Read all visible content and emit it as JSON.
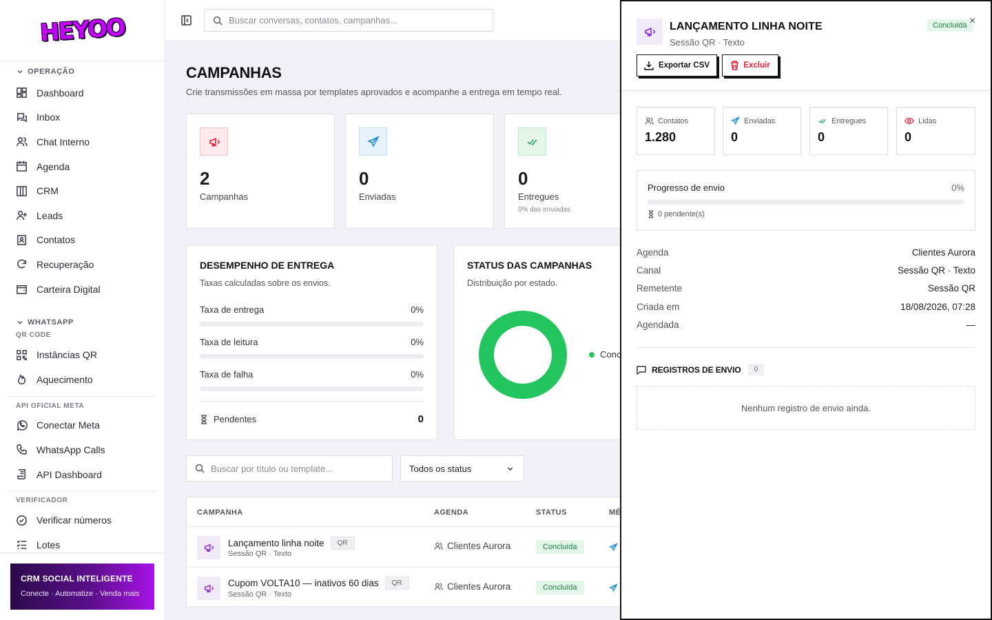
{
  "brand": {
    "logo_text": "HEYOO"
  },
  "topbar": {
    "search_placeholder": "Buscar conversas, contatos, campanhas..."
  },
  "sidebar": {
    "sections": [
      {
        "title": "OPERAÇÃO",
        "items": [
          "Dashboard",
          "Inbox",
          "Chat Interno",
          "Agenda",
          "CRM",
          "Leads",
          "Contatos",
          "Recuperação",
          "Carteira Digital"
        ]
      },
      {
        "title": "WHATSAPP",
        "subtitle": "QR CODE",
        "items": [
          "Instâncias QR",
          "Aquecimento"
        ]
      },
      {
        "title": "API OFICIAL META",
        "items": [
          "Conectar Meta",
          "WhatsApp Calls",
          "API Dashboard"
        ]
      },
      {
        "title": "VERIFICADOR",
        "items": [
          "Verificar números",
          "Lotes"
        ]
      }
    ],
    "promo": {
      "title": "CRM SOCIAL INTELIGENTE",
      "subtitle": "Conecte · Automatize · Venda mais"
    }
  },
  "page": {
    "title": "CAMPANHAS",
    "subtitle": "Crie transmissões em massa por templates aprovados e acompanhe a entrega em tempo real."
  },
  "stats": [
    {
      "value": "2",
      "label": "Campanhas",
      "icon": "megaphone-icon"
    },
    {
      "value": "0",
      "label": "Enviadas",
      "icon": "send-icon"
    },
    {
      "value": "0",
      "label": "Entregues",
      "note": "0% das enviadas",
      "icon": "double-check-icon"
    }
  ],
  "performance": {
    "title": "DESEMPENHO DE ENTREGA",
    "desc": "Taxas calculadas sobre os envios.",
    "rates": [
      {
        "label": "Taxa de entrega",
        "value": "0%"
      },
      {
        "label": "Taxa de leitura",
        "value": "0%"
      },
      {
        "label": "Taxa de falha",
        "value": "0%"
      }
    ],
    "pending_label": "Pendentes",
    "pending_value": "0"
  },
  "status_panel": {
    "title": "STATUS DAS CAMPANHAS",
    "desc": "Distribuição por estado.",
    "legend_label": "Conc"
  },
  "filters": {
    "search_placeholder": "Buscar por título ou template...",
    "status_value": "Todos os status"
  },
  "table": {
    "headers": [
      "CAMPANHA",
      "AGENDA",
      "STATUS",
      "MÉ"
    ],
    "rows": [
      {
        "name": "Lançamento linha noite",
        "tag": "QR",
        "meta": "Sessão QR · Texto",
        "agenda": "Clientes Aurora",
        "status": "Concluída"
      },
      {
        "name": "Cupom VOLTA10 — inativos 60 dias",
        "tag": "QR",
        "meta": "Sessão QR · Texto",
        "agenda": "Clientes Aurora",
        "status": "Concluída"
      }
    ]
  },
  "drawer": {
    "title": "LANÇAMENTO LINHA NOITE",
    "subtitle": "Sessão QR · Texto",
    "status": "Concluída",
    "close": "×",
    "export_label": "Exportar CSV",
    "delete_label": "Excluir",
    "metrics": [
      {
        "label": "Contatos",
        "value": "1.280"
      },
      {
        "label": "Enviadas",
        "value": "0"
      },
      {
        "label": "Entregues",
        "value": "0"
      },
      {
        "label": "Lidas",
        "value": "0"
      }
    ],
    "progress": {
      "label": "Progresso de envio",
      "percent": "0%",
      "pending": "0 pendente(s)"
    },
    "details": [
      {
        "key": "Agenda",
        "value": "Clientes Aurora"
      },
      {
        "key": "Canal",
        "value": "Sessão QR · Texto"
      },
      {
        "key": "Remetente",
        "value": "Sessão QR"
      },
      {
        "key": "Criada em",
        "value": "18/08/2026, 07:28"
      },
      {
        "key": "Agendada",
        "value": "—"
      }
    ],
    "logs": {
      "title": "REGISTROS DE ENVIO",
      "count": "0",
      "empty": "Nenhum registro de envio ainda."
    }
  },
  "colors": {
    "accent": "#a812e6",
    "success": "#22c55e",
    "danger": "#e0203a"
  }
}
